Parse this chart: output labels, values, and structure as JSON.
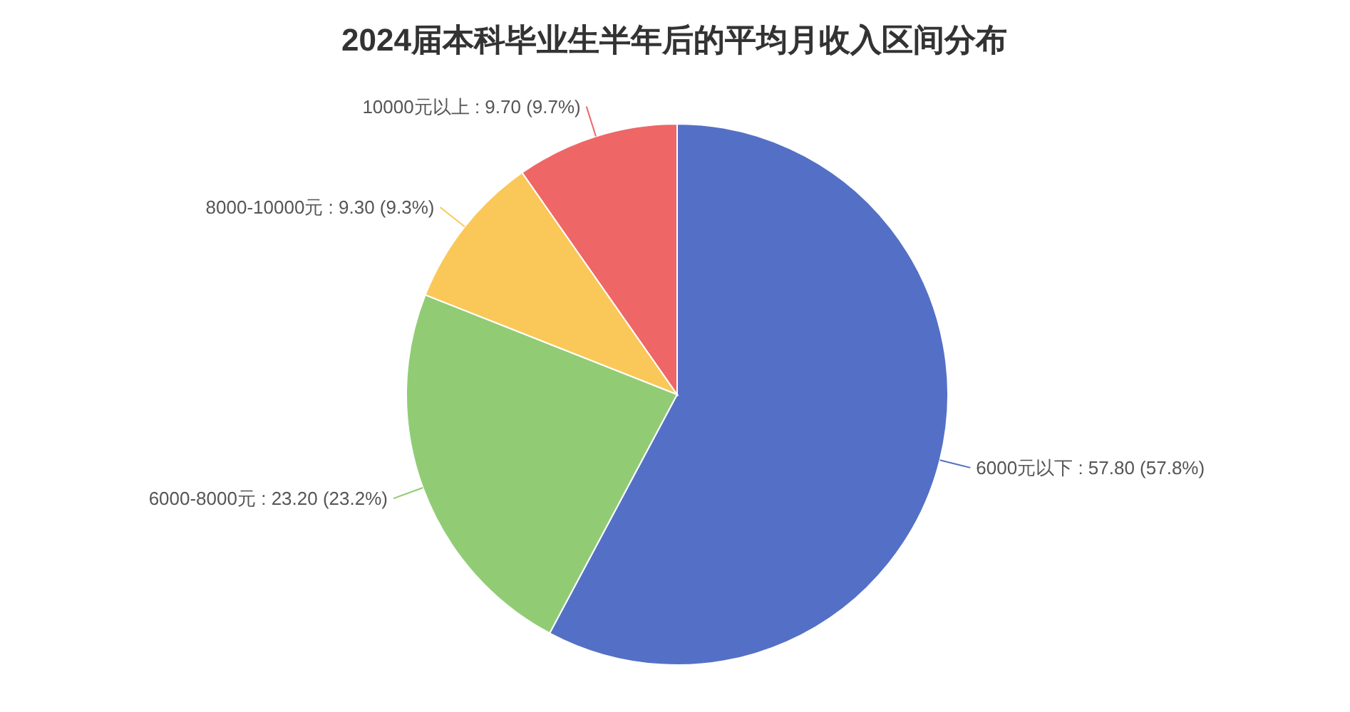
{
  "chart_data": {
    "type": "pie",
    "title": "2024届本科毕业生半年后的平均月收入区间分布",
    "categories": [
      "6000元以下",
      "6000-8000元",
      "8000-10000元",
      "10000元以上"
    ],
    "values": [
      57.8,
      23.2,
      9.3,
      9.7
    ],
    "colors": [
      "#5470c6",
      "#91cc75",
      "#fac858",
      "#ee6666"
    ],
    "value_labels": [
      "57.80 (57.8%)",
      "23.20 (23.2%)",
      "9.30 (9.3%)",
      "9.70 (9.7%)"
    ],
    "legend": false
  }
}
